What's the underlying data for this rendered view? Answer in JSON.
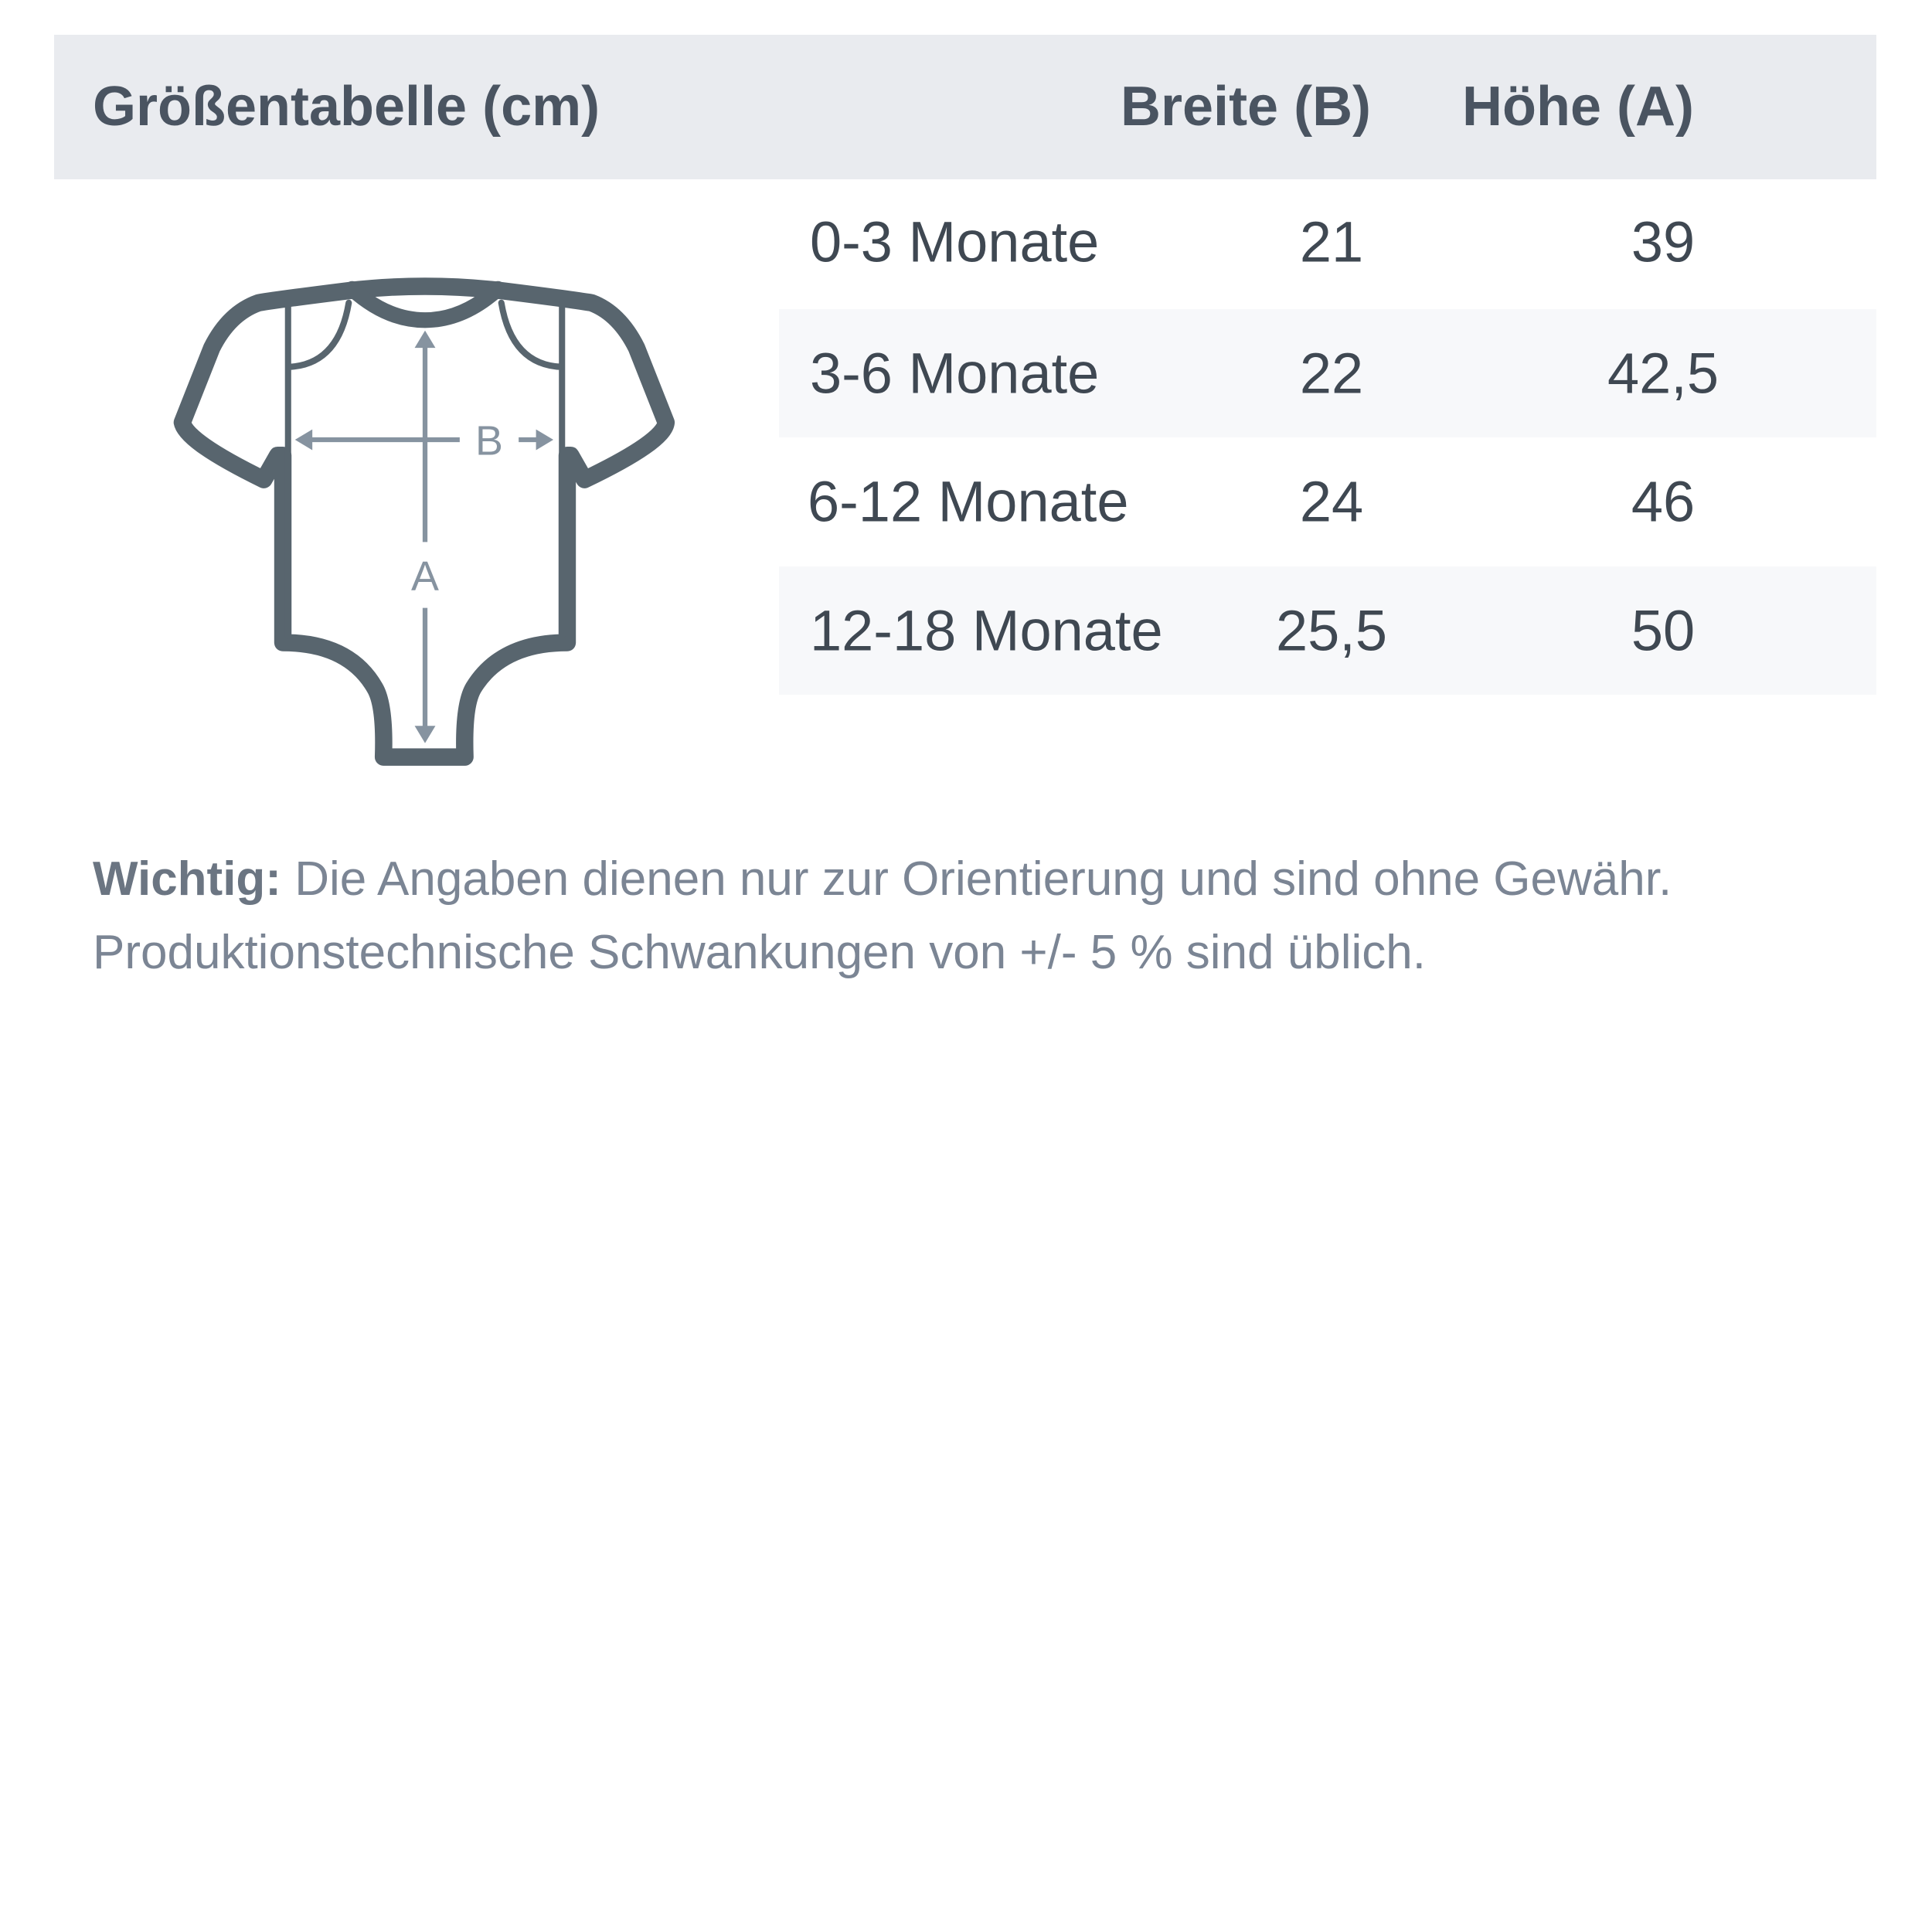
{
  "header": {
    "title": "Größentabelle (cm)",
    "col_width": "Breite (B)",
    "col_height": "Höhe (A)"
  },
  "diagram": {
    "label_width": "B",
    "label_height": "A",
    "outline_color": "#58656e",
    "arrow_color": "#8693a0"
  },
  "rows": [
    {
      "size": "0-3 Monate",
      "width": "21",
      "height": "39"
    },
    {
      "size": "3-6 Monate",
      "width": "22",
      "height": "42,5"
    },
    {
      "size": "6-12 Monate",
      "width": "24",
      "height": "46"
    },
    {
      "size": "12-18 Monate",
      "width": "25,5",
      "height": "50"
    }
  ],
  "note": {
    "label": "Wichtig:",
    "line1": "Die Angaben dienen nur zur Orientierung und sind ohne Gewähr.",
    "line2": "Produktionstechnische Schwankungen von +/- 5 % sind üblich."
  }
}
